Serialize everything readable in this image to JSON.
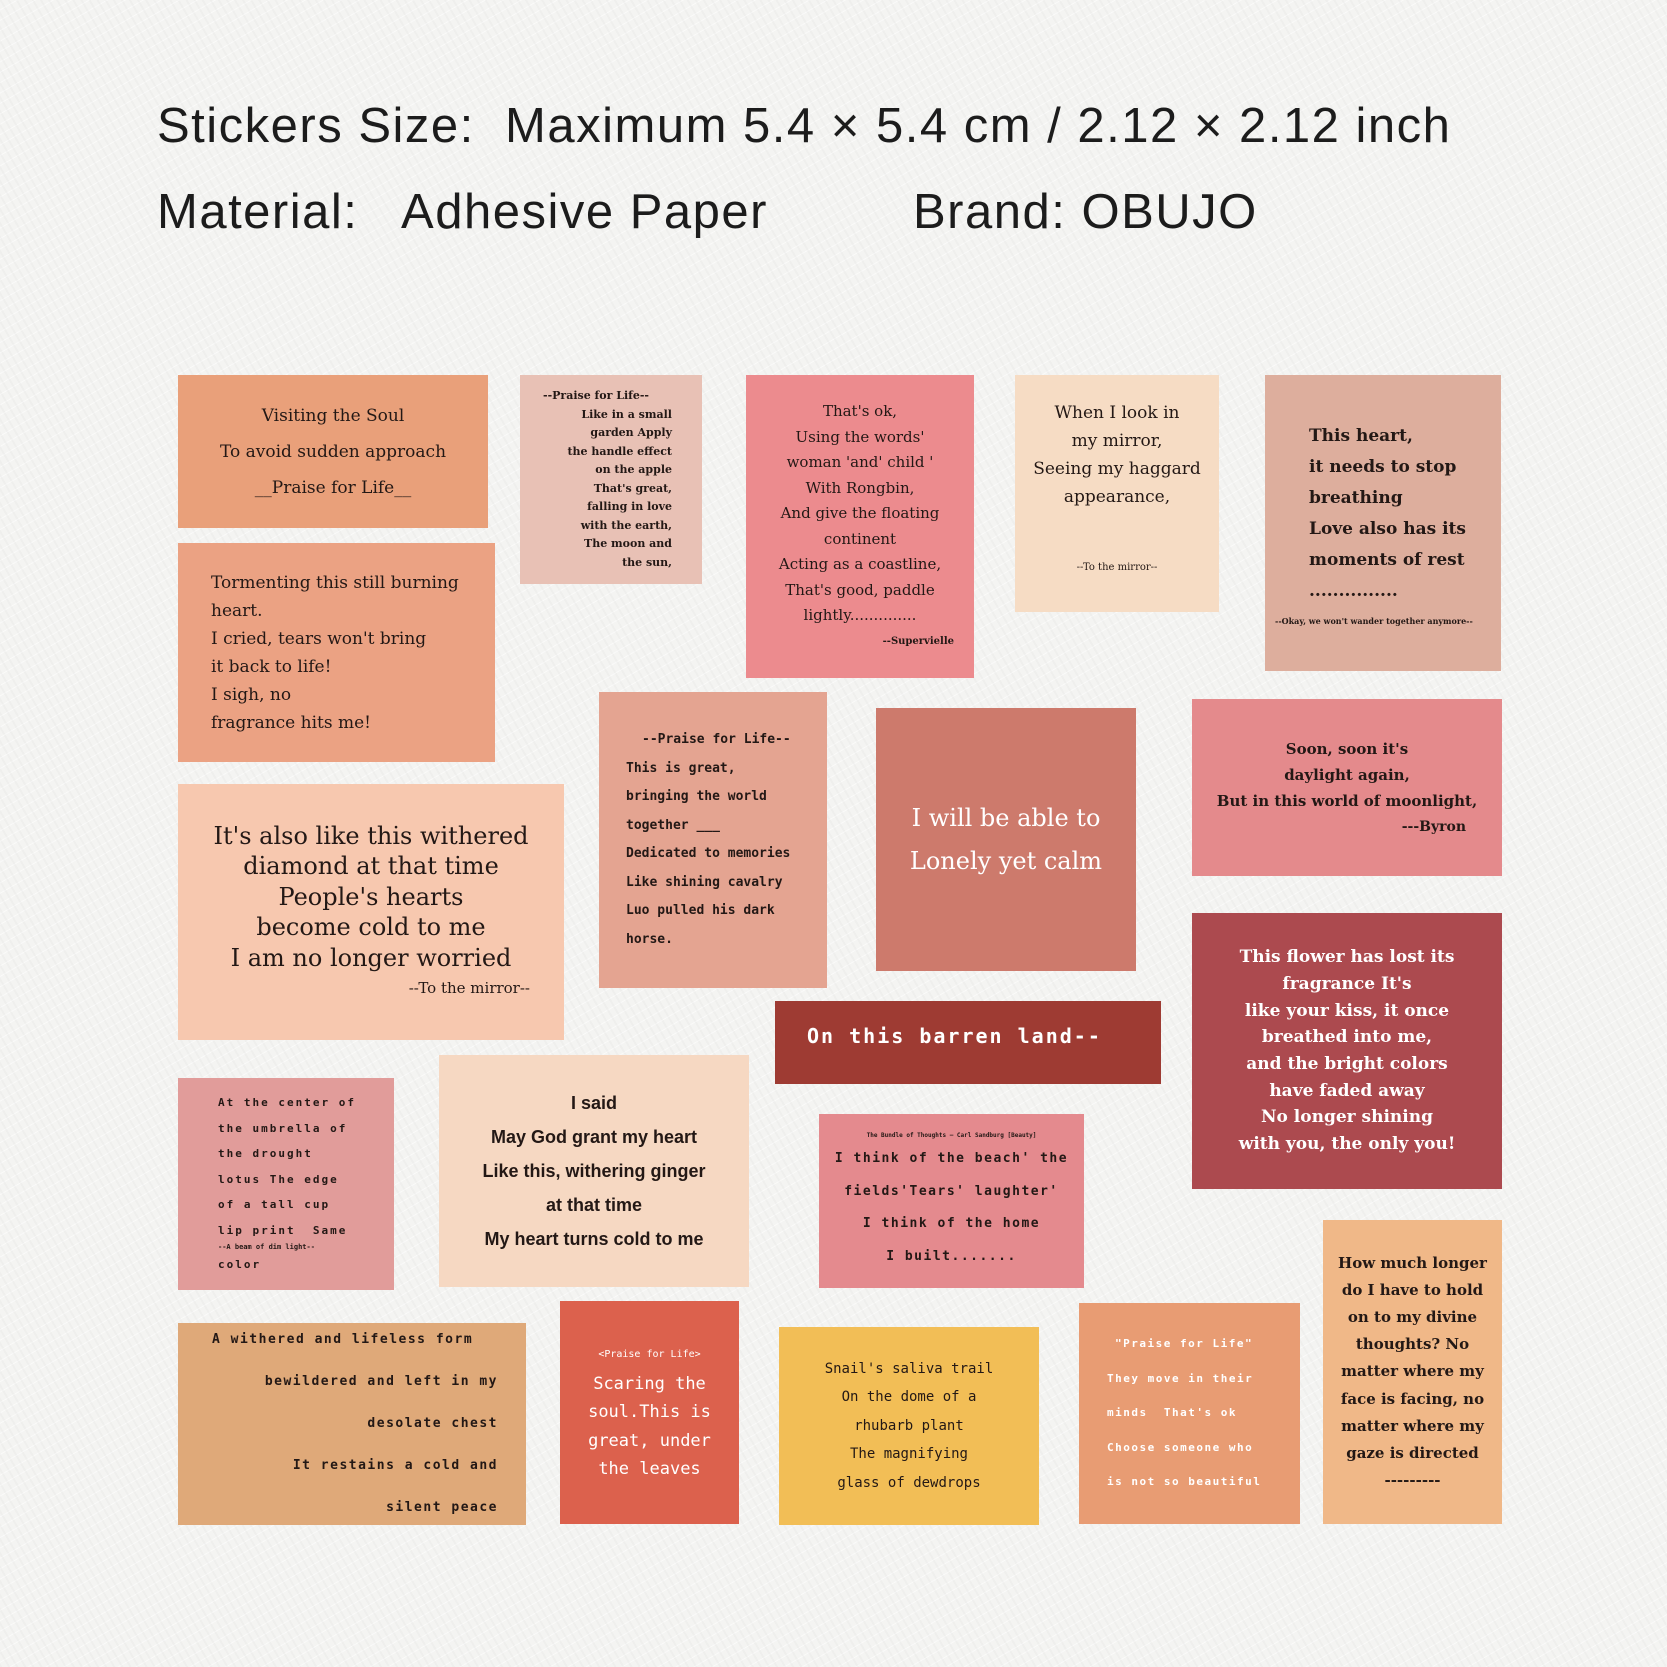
{
  "header": {
    "size_label": "Stickers Size:",
    "size_value": "Maximum 5.4 × 5.4 cm / 2.12 × 2.12 inch",
    "material_label": "Material:",
    "material_value": "Adhesive Paper",
    "brand_label": "Brand:",
    "brand_value": "OBUJO"
  },
  "stickers": [
    {
      "color": "#e9a07a",
      "lines": [
        "Visiting the Soul",
        "To avoid sudden approach",
        "__Praise for Life__"
      ]
    },
    {
      "color": "#e8c1b5",
      "lines": [
        "--Praise for Life--",
        "Like in a small",
        "garden Apply",
        "the handle effect",
        "on the apple",
        "That's great,",
        "falling in love",
        "with the earth,",
        "The moon and",
        "the sun,"
      ]
    },
    {
      "color": "#ec8b8e",
      "lines": [
        "That's ok,",
        "Using the words'",
        "woman 'and' child '",
        "With Rongbin,",
        "And give the floating",
        "continent",
        "Acting as a coastline,",
        "That's good, paddle",
        "lightly..............",
        "--Supervielle"
      ]
    },
    {
      "color": "#f6dcc4",
      "lines": [
        "When I look in",
        "my mirror,",
        "Seeing my haggard",
        "appearance,",
        "--To the mirror--"
      ]
    },
    {
      "color": "#ddae9d",
      "lines": [
        "This heart,",
        "it needs to stop",
        "breathing",
        "Love also has its",
        "moments of rest",
        "...............",
        "--Okay, we won't wander together anymore--"
      ]
    },
    {
      "color": "#eba283",
      "lines": [
        "Tormenting this still burning",
        "heart.",
        "I cried, tears won't bring",
        "it back to life!",
        "I sigh, no",
        "fragrance hits me!"
      ]
    },
    {
      "color": "#e4a491",
      "lines": [
        "--Praise for Life--",
        "This is great,",
        "bringing the world",
        "together ___",
        "Dedicated to memories",
        "Like shining cavalry",
        "Luo pulled his dark",
        "horse."
      ]
    },
    {
      "color": "#cd7a6c",
      "lines": [
        "I will be able to",
        "Lonely yet calm"
      ]
    },
    {
      "color": "#e48a8c",
      "lines": [
        "Soon, soon it's",
        "daylight again,",
        "But in this world of moonlight,",
        "---Byron"
      ]
    },
    {
      "color": "#f7c8af",
      "lines": [
        "It's also like this withered",
        "diamond at that time",
        "People's hearts",
        "become cold to me",
        "I am no longer worried",
        "--To the mirror--"
      ]
    },
    {
      "color": "#9e3b33",
      "lines": [
        "On this barren land--"
      ]
    },
    {
      "color": "#ac4a4f",
      "lines": [
        "This flower has lost its",
        "fragrance It's",
        "like your kiss, it once",
        "breathed into me,",
        "and the bright colors",
        "have faded away",
        "No longer shining",
        "with you, the only you!"
      ]
    },
    {
      "color": "#e19c9a",
      "lines": [
        "At the center of",
        "the umbrella of",
        "the drought",
        "lotus The edge",
        "of a tall cup",
        "lip print  Same",
        "--A beam of dim light--",
        "color"
      ]
    },
    {
      "color": "#f6d8c2",
      "lines": [
        "I said",
        "May God grant my heart",
        "Like this, withering ginger",
        "at that time",
        "My heart turns cold to me"
      ]
    },
    {
      "color": "#e48a8e",
      "lines": [
        "The Bundle of Thoughts — Carl Sandburg [Beauty]",
        "I think of the beach' the",
        "fields'Tears' laughter'",
        "I think of the home",
        "I built......."
      ]
    },
    {
      "color": "#f0b888",
      "lines": [
        "How much longer",
        "do I have to hold",
        "on to my divine",
        "thoughts? No",
        "matter where my",
        "face is facing, no",
        "matter where my",
        "gaze is directed",
        "---------"
      ]
    },
    {
      "color": "#dfa979",
      "lines": [
        "A withered and lifeless form",
        "bewildered and left in my",
        "desolate chest",
        "It restains a cold and",
        "silent peace"
      ]
    },
    {
      "color": "#dc614d",
      "lines": [
        "<Praise for Life>",
        "Scaring the",
        "soul.This is",
        "great, under",
        "the leaves"
      ]
    },
    {
      "color": "#f2be56",
      "lines": [
        "Snail's saliva trail",
        "On the dome of a",
        "rhubarb plant",
        "The magnifying",
        "glass of dewdrops"
      ]
    },
    {
      "color": "#e89c73",
      "lines": [
        "\"Praise for Life\"",
        "They move in their",
        "minds  That's ok",
        "Choose someone who",
        "is not so beautiful"
      ]
    }
  ]
}
